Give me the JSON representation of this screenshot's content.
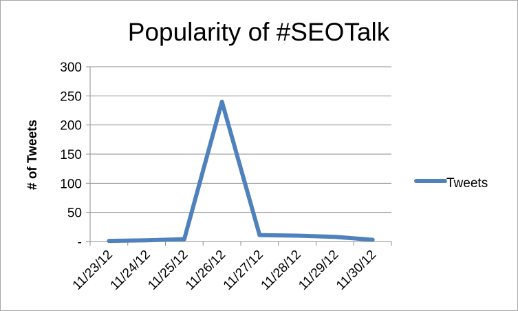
{
  "chart_data": {
    "type": "line",
    "title": "Popularity of #SEOTalk",
    "xlabel": "",
    "ylabel": "# of Tweets",
    "ylim": [
      0,
      300
    ],
    "yticks": [
      0,
      50,
      100,
      150,
      200,
      250,
      300
    ],
    "ytick_labels": [
      "-",
      "50",
      "100",
      "150",
      "200",
      "250",
      "300"
    ],
    "categories": [
      "11/23/12",
      "11/24/12",
      "11/25/12",
      "11/26/12",
      "11/27/12",
      "11/28/12",
      "11/29/12",
      "11/30/12"
    ],
    "series": [
      {
        "name": "Tweets",
        "values": [
          1,
          2,
          4,
          240,
          11,
          10,
          8,
          3
        ],
        "color": "#4f81bd"
      }
    ],
    "grid": true,
    "legend_position": "right"
  }
}
